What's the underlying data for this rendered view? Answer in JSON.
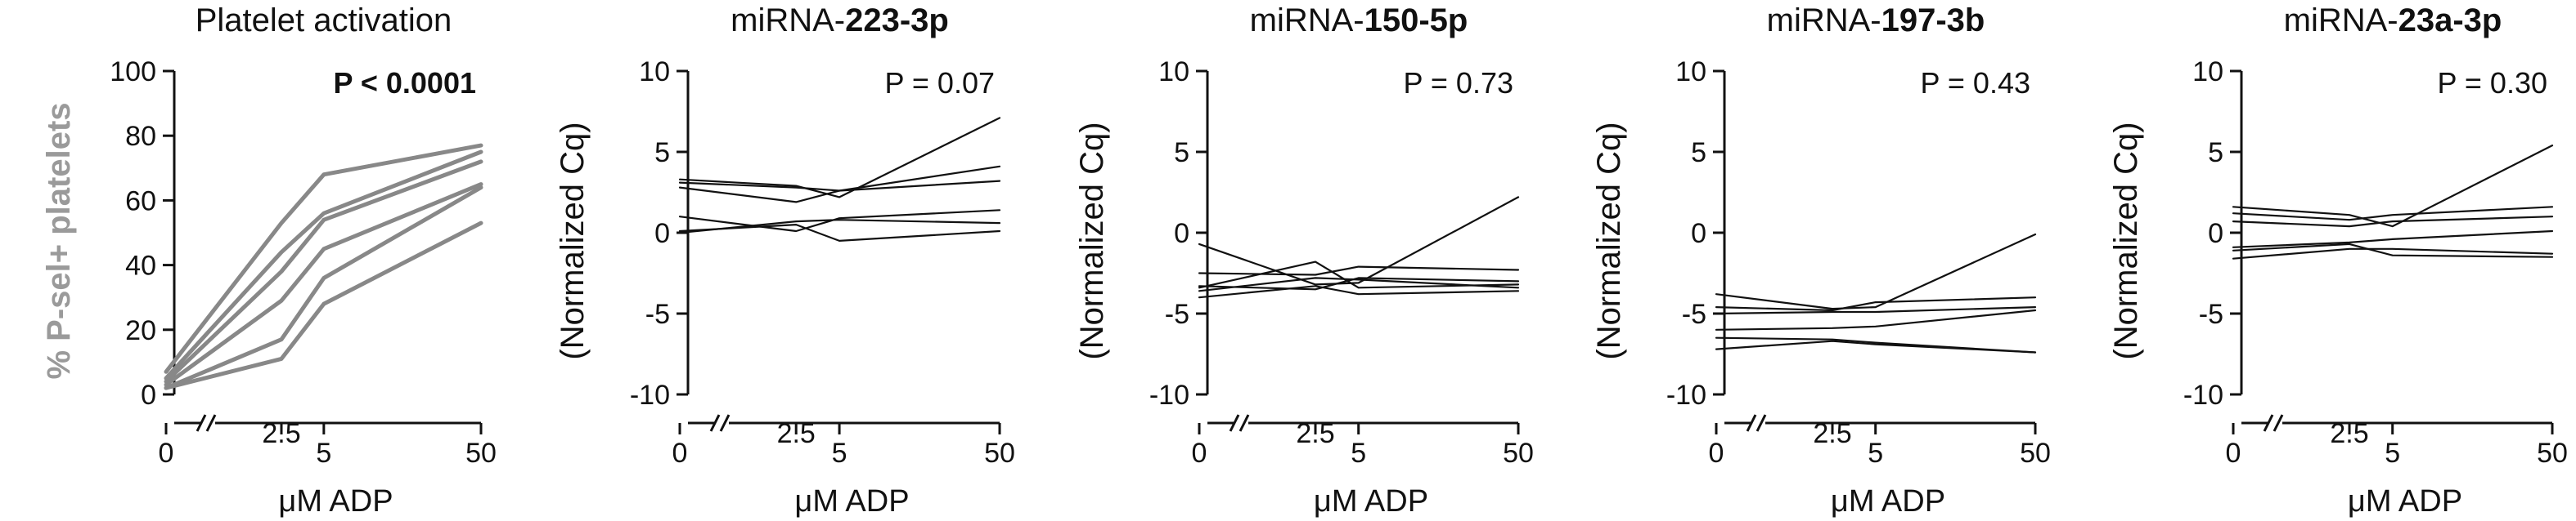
{
  "chart_data": [
    {
      "type": "line",
      "title": "Platelet activation",
      "p_value": "P < 0.0001",
      "xlabel": "μM ADP",
      "ylabel": "% P-sel+ platelets",
      "x": [
        0,
        2.5,
        5,
        50
      ],
      "x_tick_labels": [
        "0",
        "2.5",
        "5",
        "50"
      ],
      "y_ticks": [
        "100",
        "80",
        "60",
        "40",
        "20",
        "0"
      ],
      "ylim": [
        0,
        100
      ],
      "axis_break": true,
      "series_color": "#888888",
      "series": [
        {
          "values": [
            7,
            53,
            68,
            77
          ]
        },
        {
          "values": [
            5,
            44,
            56,
            75
          ]
        },
        {
          "values": [
            4,
            38,
            54,
            72
          ]
        },
        {
          "values": [
            3,
            29,
            45,
            65
          ]
        },
        {
          "values": [
            2,
            17,
            36,
            64
          ]
        },
        {
          "values": [
            2,
            11,
            28,
            53
          ]
        }
      ]
    },
    {
      "type": "line",
      "title_prefix": "miRNA-",
      "title_suffix": "223-3p",
      "p_value": "P = 0.07",
      "xlabel": "μM ADP",
      "ylabel": "(Normalized Cq)",
      "x": [
        0,
        2.5,
        5,
        50
      ],
      "x_tick_labels": [
        "0",
        "2.5",
        "5",
        "50"
      ],
      "y_ticks": [
        "10",
        "5",
        "0",
        "-5",
        "-10"
      ],
      "ylim": [
        -10,
        10
      ],
      "axis_break": true,
      "series_color": "#111111",
      "series": [
        {
          "values": [
            3.3,
            2.9,
            2.2,
            7.1
          ]
        },
        {
          "values": [
            3.1,
            2.8,
            2.6,
            4.1
          ]
        },
        {
          "values": [
            2.8,
            1.9,
            2.6,
            3.2
          ]
        },
        {
          "values": [
            1.0,
            0.1,
            0.9,
            1.4
          ]
        },
        {
          "values": [
            0.1,
            0.5,
            -0.5,
            0.1
          ]
        },
        {
          "values": [
            0.0,
            0.7,
            0.8,
            0.6
          ]
        }
      ]
    },
    {
      "type": "line",
      "title_prefix": "miRNA-",
      "title_suffix": "150-5p",
      "p_value": "P = 0.73",
      "xlabel": "μM ADP",
      "ylabel": "(Normalized Cq)",
      "x": [
        0,
        2.5,
        5,
        50
      ],
      "x_tick_labels": [
        "0",
        "2.5",
        "5",
        "50"
      ],
      "y_ticks": [
        "10",
        "5",
        "0",
        "-5",
        "-10"
      ],
      "ylim": [
        -10,
        10
      ],
      "axis_break": true,
      "series_color": "#111111",
      "series": [
        {
          "values": [
            -0.7,
            -3.2,
            -3.1,
            2.2
          ]
        },
        {
          "values": [
            -2.5,
            -2.6,
            -2.1,
            -2.3
          ]
        },
        {
          "values": [
            -3.4,
            -1.8,
            -3.4,
            -3.2
          ]
        },
        {
          "values": [
            -3.6,
            -2.8,
            -2.9,
            -3.4
          ]
        },
        {
          "values": [
            -3.3,
            -3.5,
            -2.8,
            -3.0
          ]
        },
        {
          "values": [
            -4.0,
            -3.3,
            -3.8,
            -3.6
          ]
        }
      ]
    },
    {
      "type": "line",
      "title_prefix": "miRNA-",
      "title_suffix": "197-3b",
      "p_value": "P = 0.43",
      "xlabel": "μM ADP",
      "ylabel": "(Normalized Cq)",
      "x": [
        0,
        2.5,
        5,
        50
      ],
      "x_tick_labels": [
        "0",
        "2.5",
        "5",
        "50"
      ],
      "y_ticks": [
        "10",
        "5",
        "0",
        "-5",
        "-10"
      ],
      "ylim": [
        -10,
        10
      ],
      "axis_break": true,
      "series_color": "#111111",
      "series": [
        {
          "values": [
            -3.8,
            -4.7,
            -4.6,
            -0.1
          ]
        },
        {
          "values": [
            -4.6,
            -4.8,
            -4.3,
            -4.0
          ]
        },
        {
          "values": [
            -5.0,
            -4.9,
            -4.9,
            -4.6
          ]
        },
        {
          "values": [
            -6.0,
            -5.9,
            -5.8,
            -4.8
          ]
        },
        {
          "values": [
            -6.5,
            -6.6,
            -6.8,
            -7.4
          ]
        },
        {
          "values": [
            -7.2,
            -6.7,
            -6.9,
            -7.4
          ]
        }
      ]
    },
    {
      "type": "line",
      "title_prefix": "miRNA-",
      "title_suffix": "23a-3p",
      "p_value": "P = 0.30",
      "xlabel": "μM ADP",
      "ylabel": "(Normalized Cq)",
      "x": [
        0,
        2.5,
        5,
        50
      ],
      "x_tick_labels": [
        "0",
        "2.5",
        "5",
        "50"
      ],
      "y_ticks": [
        "10",
        "5",
        "0",
        "-5",
        "-10"
      ],
      "ylim": [
        -10,
        10
      ],
      "axis_break": true,
      "series_color": "#111111",
      "series": [
        {
          "values": [
            1.6,
            1.1,
            0.4,
            5.4
          ]
        },
        {
          "values": [
            1.2,
            0.8,
            1.1,
            1.6
          ]
        },
        {
          "values": [
            0.7,
            0.4,
            0.7,
            1.0
          ]
        },
        {
          "values": [
            -0.9,
            -0.6,
            -0.4,
            0.1
          ]
        },
        {
          "values": [
            -1.1,
            -0.7,
            -1.4,
            -1.5
          ]
        },
        {
          "values": [
            -1.6,
            -1.0,
            -1.0,
            -1.3
          ]
        }
      ]
    }
  ]
}
